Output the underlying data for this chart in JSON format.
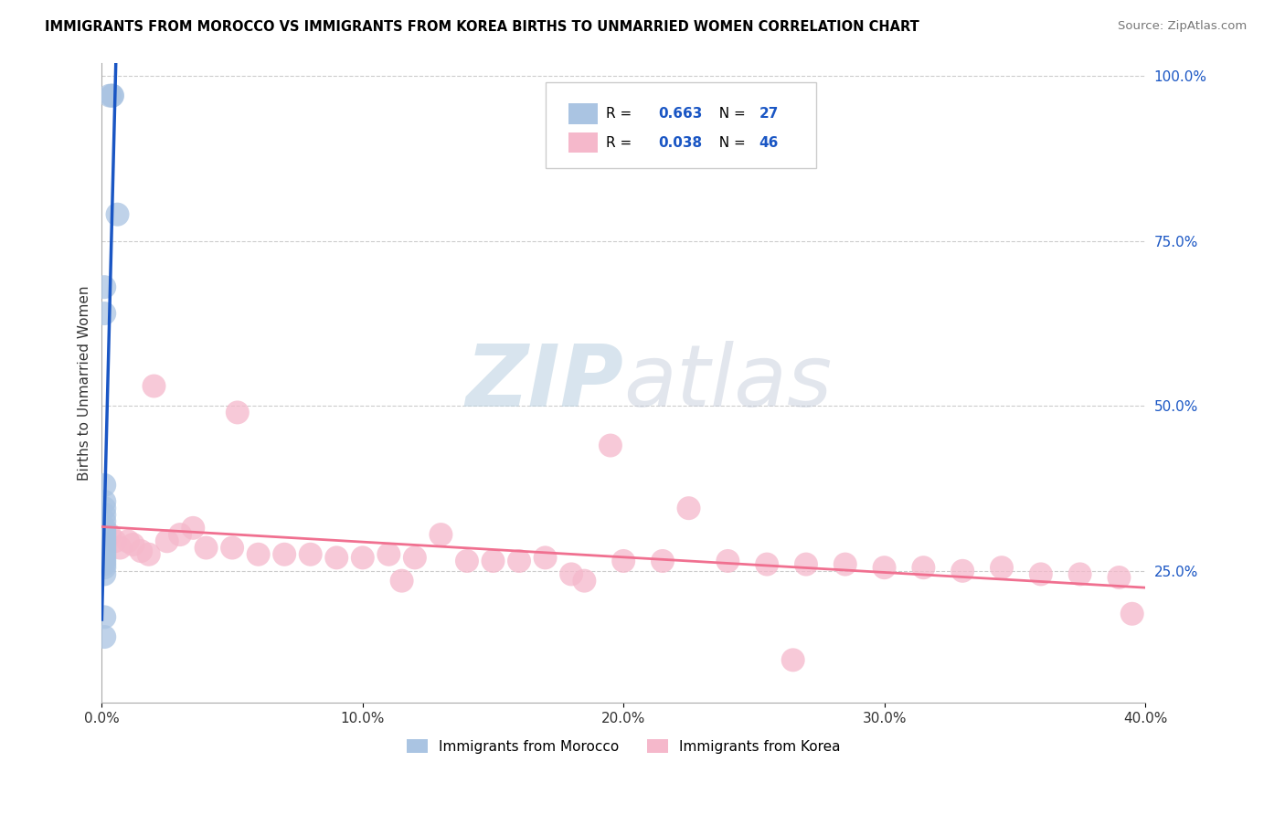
{
  "title": "IMMIGRANTS FROM MOROCCO VS IMMIGRANTS FROM KOREA BIRTHS TO UNMARRIED WOMEN CORRELATION CHART",
  "source": "Source: ZipAtlas.com",
  "ylabel_left": "Births to Unmarried Women",
  "watermark_zip": "ZIP",
  "watermark_atlas": "atlas",
  "morocco_R": 0.663,
  "morocco_N": 27,
  "korea_R": 0.038,
  "korea_N": 46,
  "morocco_color": "#aac4e2",
  "korea_color": "#f5b8cb",
  "morocco_line_color": "#1a56c4",
  "korea_line_color": "#f07090",
  "x_min": 0.0,
  "x_max": 0.4,
  "y_min": 0.05,
  "y_max": 1.02,
  "x_ticks": [
    0.0,
    0.1,
    0.2,
    0.3,
    0.4
  ],
  "x_tick_labels": [
    "0.0%",
    "10.0%",
    "20.0%",
    "30.0%",
    "40.0%"
  ],
  "y_ticks_right": [
    0.25,
    0.5,
    0.75,
    1.0
  ],
  "y_tick_labels_right": [
    "25.0%",
    "50.0%",
    "75.0%",
    "100.0%"
  ],
  "morocco_x": [
    0.003,
    0.004,
    0.004,
    0.006,
    0.001,
    0.001,
    0.001,
    0.001,
    0.001,
    0.001,
    0.001,
    0.001,
    0.001,
    0.001,
    0.001,
    0.001,
    0.001,
    0.001,
    0.001,
    0.001,
    0.001,
    0.001,
    0.001,
    0.001,
    0.001,
    0.001,
    0.001
  ],
  "morocco_y": [
    0.97,
    0.97,
    0.97,
    0.79,
    0.68,
    0.64,
    0.38,
    0.355,
    0.345,
    0.335,
    0.325,
    0.315,
    0.31,
    0.305,
    0.3,
    0.295,
    0.29,
    0.285,
    0.28,
    0.275,
    0.27,
    0.265,
    0.26,
    0.255,
    0.245,
    0.18,
    0.15
  ],
  "korea_x": [
    0.003,
    0.005,
    0.007,
    0.01,
    0.012,
    0.015,
    0.018,
    0.02,
    0.025,
    0.03,
    0.035,
    0.04,
    0.05,
    0.06,
    0.07,
    0.08,
    0.09,
    0.1,
    0.11,
    0.12,
    0.13,
    0.14,
    0.15,
    0.16,
    0.17,
    0.18,
    0.195,
    0.2,
    0.215,
    0.225,
    0.24,
    0.255,
    0.27,
    0.285,
    0.3,
    0.315,
    0.33,
    0.345,
    0.36,
    0.375,
    0.39,
    0.395,
    0.052,
    0.115,
    0.185,
    0.265
  ],
  "korea_y": [
    0.305,
    0.295,
    0.285,
    0.295,
    0.29,
    0.28,
    0.275,
    0.53,
    0.295,
    0.305,
    0.315,
    0.285,
    0.285,
    0.275,
    0.275,
    0.275,
    0.27,
    0.27,
    0.275,
    0.27,
    0.305,
    0.265,
    0.265,
    0.265,
    0.27,
    0.245,
    0.44,
    0.265,
    0.265,
    0.345,
    0.265,
    0.26,
    0.26,
    0.26,
    0.255,
    0.255,
    0.25,
    0.255,
    0.245,
    0.245,
    0.24,
    0.185,
    0.49,
    0.235,
    0.235,
    0.115
  ]
}
